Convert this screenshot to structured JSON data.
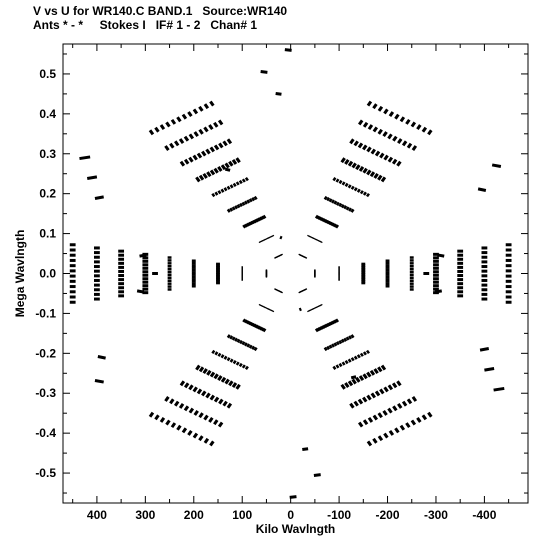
{
  "header": {
    "line1": "V vs U for WR140.C BAND.1   Source:WR140",
    "line2": "Ants * - *     Stokes I   IF# 1 - 2   Chan# 1"
  },
  "chart_data": {
    "type": "scatter",
    "title": "V vs U for WR140.C BAND.1   Source:WR140",
    "subtitle": "Ants * - *     Stokes I   IF# 1 - 2   Chan# 1",
    "xlabel": "Kilo Wavlngth",
    "ylabel": "Mega Wavlngth",
    "xlim": [
      470,
      -490
    ],
    "ylim": [
      -0.575,
      0.575
    ],
    "x_ticks": [
      400,
      300,
      200,
      100,
      0,
      -100,
      -200,
      -300,
      -400
    ],
    "x_tick_labels": [
      "400",
      "300",
      "200",
      "100",
      "0",
      "-100",
      "-200",
      "-300",
      "-400"
    ],
    "y_ticks": [
      0.5,
      0.4,
      0.3,
      0.2,
      0.1,
      0.0,
      -0.1,
      -0.2,
      -0.3,
      -0.4,
      -0.5
    ],
    "y_tick_labels": [
      "0.5",
      "0.4",
      "0.3",
      "0.2",
      "0.1",
      "0.0",
      "-0.1",
      "-0.2",
      "-0.3",
      "-0.4",
      "-0.5"
    ],
    "grid": false,
    "marker_color": "#000000",
    "baselines": [
      {
        "u": 425,
        "v": 0.29,
        "du": 22,
        "dv": -0.004
      },
      {
        "u": 410,
        "v": 0.24,
        "du": 20,
        "dv": -0.004
      },
      {
        "u": 395,
        "v": 0.19,
        "du": 18,
        "dv": -0.004
      },
      {
        "u": 305,
        "v": 0.045,
        "du": 14,
        "dv": -0.003
      },
      {
        "u": 395,
        "v": -0.27,
        "du": 18,
        "dv": 0.004
      },
      {
        "u": 390,
        "v": -0.21,
        "du": 16,
        "dv": 0.004
      },
      {
        "u": 310,
        "v": -0.045,
        "du": 14,
        "dv": 0.003
      },
      {
        "u": 5,
        "v": 0.56,
        "du": 14,
        "dv": 0.002
      },
      {
        "u": 55,
        "v": 0.505,
        "du": 14,
        "dv": 0.002
      },
      {
        "u": 25,
        "v": 0.45,
        "du": 12,
        "dv": 0.002
      },
      {
        "u": -5,
        "v": -0.56,
        "du": 14,
        "dv": -0.002
      },
      {
        "u": -55,
        "v": -0.505,
        "du": 14,
        "dv": -0.002
      },
      {
        "u": -30,
        "v": -0.44,
        "du": 12,
        "dv": -0.002
      },
      {
        "u": -425,
        "v": 0.27,
        "du": 18,
        "dv": 0.004
      },
      {
        "u": -395,
        "v": 0.21,
        "du": 16,
        "dv": 0.004
      },
      {
        "u": -310,
        "v": 0.045,
        "du": 14,
        "dv": 0.003
      },
      {
        "u": -430,
        "v": -0.29,
        "du": 22,
        "dv": -0.004
      },
      {
        "u": -410,
        "v": -0.24,
        "du": 20,
        "dv": -0.004
      },
      {
        "u": -400,
        "v": -0.19,
        "du": 18,
        "dv": -0.004
      },
      {
        "u": -305,
        "v": -0.045,
        "du": 14,
        "dv": -0.003
      },
      {
        "u": 280,
        "v": 0.0,
        "du": 12,
        "dv": 0.0
      },
      {
        "u": -280,
        "v": 0.0,
        "du": 12,
        "dv": 0.0
      },
      {
        "u": 130,
        "v": 0.26,
        "du": 10,
        "dv": 0.003
      },
      {
        "u": -130,
        "v": -0.26,
        "du": 10,
        "dv": -0.003
      },
      {
        "u": 20,
        "v": 0.09,
        "du": 4,
        "dv": 0.002
      },
      {
        "u": -20,
        "v": -0.09,
        "du": 4,
        "dv": -0.002
      }
    ]
  }
}
